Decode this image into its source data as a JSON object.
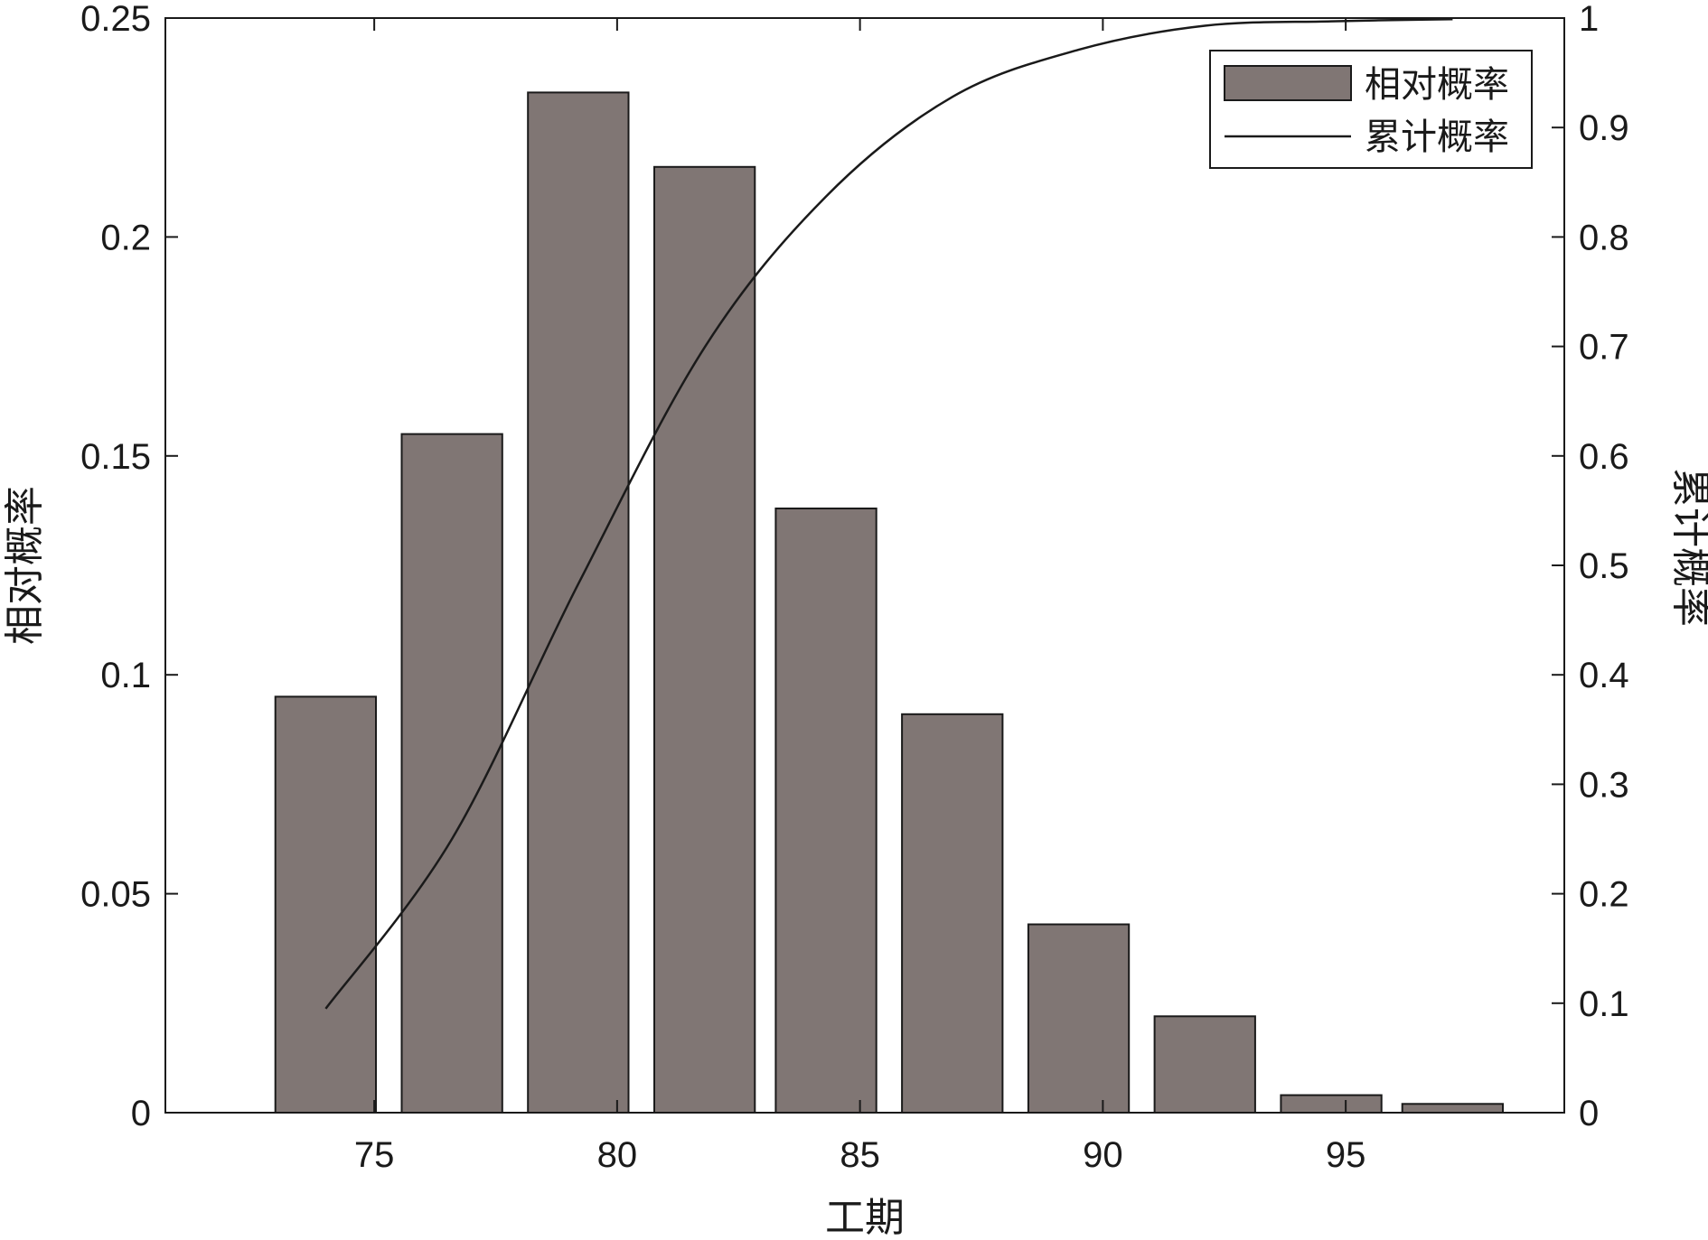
{
  "chart_data": {
    "type": "bar",
    "xlabel": "工期",
    "ylabel_left": "相对概率",
    "ylabel_right": "累计概率",
    "x_ticks": [
      75,
      80,
      85,
      90,
      95
    ],
    "x_tick_labels": [
      "75",
      "80",
      "85",
      "90",
      "95"
    ],
    "x_range": [
      70.7,
      99.5
    ],
    "y_left_range": [
      0,
      0.25
    ],
    "y_left_ticks": [
      0,
      0.05,
      0.1,
      0.15,
      0.2,
      0.25
    ],
    "y_left_tick_labels": [
      "0",
      "0.05",
      "0.1",
      "0.15",
      "0.2",
      "0.25"
    ],
    "y_right_range": [
      0,
      1
    ],
    "y_right_ticks": [
      0,
      0.1,
      0.2,
      0.3,
      0.4,
      0.5,
      0.6,
      0.7,
      0.8,
      0.9,
      1
    ],
    "y_right_tick_labels": [
      "0",
      "0.1",
      "0.2",
      "0.3",
      "0.4",
      "0.5",
      "0.6",
      "0.7",
      "0.8",
      "0.9",
      "1"
    ],
    "grid": false,
    "legend_position": "top-right",
    "bar_series": {
      "name": "相对概率",
      "x": [
        74.0,
        76.6,
        79.2,
        81.8,
        84.3,
        86.9,
        89.5,
        92.1,
        94.7,
        97.2
      ],
      "values": [
        0.095,
        0.155,
        0.233,
        0.216,
        0.138,
        0.091,
        0.043,
        0.022,
        0.004,
        0.002
      ],
      "color": "#807674"
    },
    "line_series": {
      "name": "累计概率",
      "x": [
        74.0,
        76.6,
        79.2,
        81.8,
        84.3,
        86.9,
        89.5,
        92.1,
        94.7,
        97.2
      ],
      "values": [
        0.095,
        0.25,
        0.483,
        0.699,
        0.837,
        0.928,
        0.971,
        0.993,
        0.997,
        0.999
      ],
      "color": "#1a1a1a"
    }
  }
}
